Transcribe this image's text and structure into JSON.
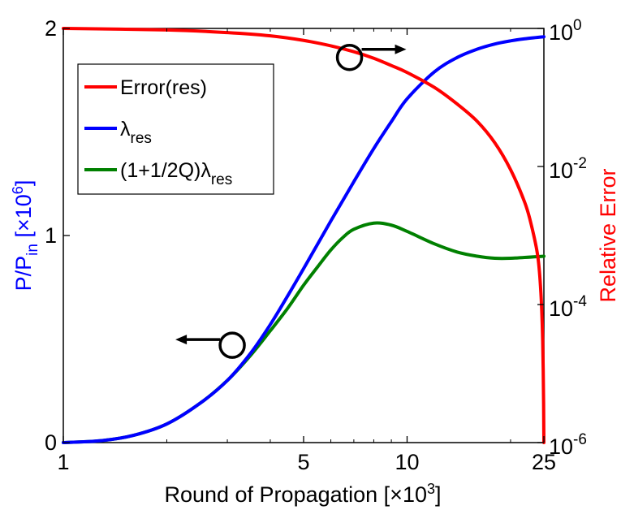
{
  "chart_data": {
    "type": "line",
    "xlabel": {
      "main": "Round of Propagation [",
      "times": "×",
      "base": "10",
      "exp": "3",
      "close": "]"
    },
    "ylabel_left": {
      "main": "P/P",
      "sub": "in",
      "bracket": " [",
      "times": "×",
      "base": "10",
      "exp": "6",
      "close": "]"
    },
    "ylabel_right": "Relative Error",
    "x_scale": "log",
    "xlim": [
      1,
      25
    ],
    "ylim_left": [
      0,
      2
    ],
    "ylim_right": [
      1e-06,
      1
    ],
    "x_ticks": [
      1,
      5,
      10,
      25
    ],
    "x_tick_labels": [
      "1",
      "5",
      "10",
      "25"
    ],
    "y_left_ticks": [
      0,
      1,
      2
    ],
    "y_left_tick_labels": [
      "0",
      "1",
      "2"
    ],
    "y_right_ticks": [
      1e-06,
      0.0001,
      0.01,
      1
    ],
    "y_right_tick_labels": [
      {
        "base": "10",
        "exp": "-6"
      },
      {
        "base": "10",
        "exp": "-4"
      },
      {
        "base": "10",
        "exp": "-2"
      },
      {
        "base": "10",
        "exp": "0"
      }
    ],
    "grid": false,
    "legend_position": "top-left",
    "series": [
      {
        "name": "Error(res)",
        "axis": "right",
        "color": "#ff0000",
        "x": [
          1,
          2,
          3,
          4,
          5,
          6,
          7,
          8,
          9,
          10,
          12,
          14,
          16,
          18,
          20,
          22,
          23,
          24,
          24.5,
          24.8,
          24.95,
          25
        ],
        "y": [
          1,
          0.95,
          0.87,
          0.78,
          0.67,
          0.56,
          0.46,
          0.37,
          0.29,
          0.23,
          0.14,
          0.08,
          0.045,
          0.022,
          0.009,
          0.003,
          0.0014,
          0.0005,
          0.00015,
          3e-05,
          4e-06,
          1e-06
        ]
      },
      {
        "name": "λ",
        "name_sub": "res",
        "axis": "left",
        "color": "#0000ff",
        "x": [
          1,
          1.3,
          1.6,
          2,
          2.5,
          3,
          3.5,
          4,
          4.5,
          5,
          6,
          7,
          8,
          9,
          10,
          12,
          14,
          16,
          18,
          20,
          22,
          25
        ],
        "y": [
          0,
          0.01,
          0.035,
          0.09,
          0.19,
          0.3,
          0.43,
          0.57,
          0.71,
          0.84,
          1.07,
          1.26,
          1.42,
          1.55,
          1.66,
          1.79,
          1.86,
          1.9,
          1.925,
          1.94,
          1.95,
          1.96
        ]
      },
      {
        "name": "(1+1/2Q)λ",
        "name_sub": "res",
        "axis": "left",
        "color": "#008000",
        "x": [
          1,
          1.3,
          1.6,
          2,
          2.5,
          3,
          3.5,
          4,
          4.5,
          5,
          5.5,
          6,
          6.5,
          7,
          8,
          9,
          10,
          12,
          14,
          16,
          18,
          20,
          25
        ],
        "y": [
          0,
          0.01,
          0.035,
          0.09,
          0.19,
          0.3,
          0.42,
          0.54,
          0.65,
          0.76,
          0.85,
          0.93,
          0.99,
          1.03,
          1.06,
          1.05,
          1.02,
          0.96,
          0.92,
          0.9,
          0.89,
          0.89,
          0.9
        ]
      }
    ],
    "annotations": [
      {
        "type": "circle-arrow",
        "x": 6.8,
        "y_left": 1.86,
        "direction": "right",
        "meaning": "Error(res) uses right axis"
      },
      {
        "type": "circle-arrow",
        "x": 3.1,
        "y_left": 0.47,
        "direction": "left",
        "meaning": "λres uses left axis"
      }
    ]
  }
}
